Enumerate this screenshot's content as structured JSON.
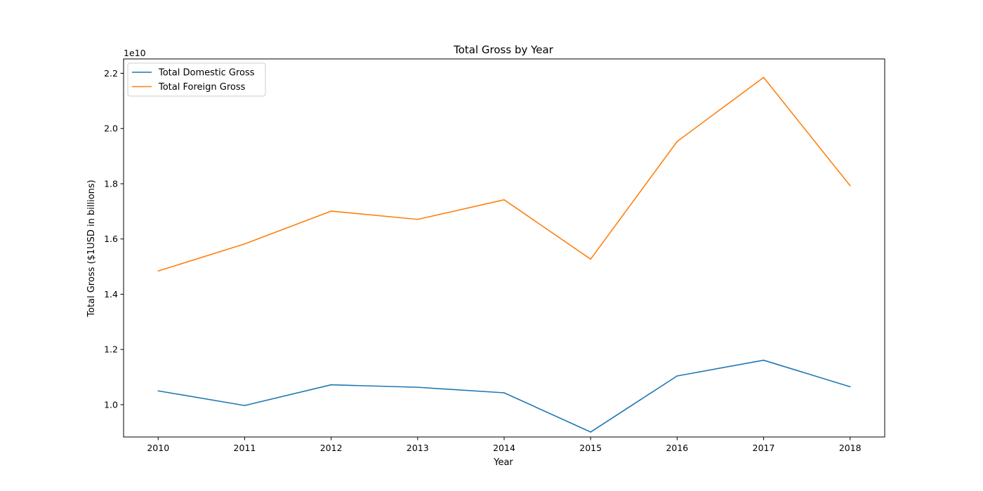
{
  "chart_data": {
    "type": "line",
    "title": "Total Gross by Year",
    "xlabel": "Year",
    "ylabel": "Total Gross ($1USD in billions)",
    "y_offset_label": "1e10",
    "x": [
      2010,
      2011,
      2012,
      2013,
      2014,
      2015,
      2016,
      2017,
      2018
    ],
    "x_tick_labels": [
      "2010",
      "2011",
      "2012",
      "2013",
      "2014",
      "2015",
      "2016",
      "2017",
      "2018"
    ],
    "y_tick_values": [
      1.0,
      1.2,
      1.4,
      1.6,
      1.8,
      2.0,
      2.2
    ],
    "y_tick_labels": [
      "1.0",
      "1.2",
      "1.4",
      "1.6",
      "1.8",
      "2.0",
      "2.2"
    ],
    "xlim": [
      2009.6,
      2018.4
    ],
    "ylim": [
      0.883,
      2.252
    ],
    "grid": false,
    "legend_position": "upper-left",
    "series": [
      {
        "name": "Total Domestic Gross",
        "color": "#1f77b4",
        "values": [
          1.05,
          0.997,
          1.072,
          1.063,
          1.043,
          0.901,
          1.104,
          1.161,
          1.065
        ]
      },
      {
        "name": "Total Foreign Gross",
        "color": "#ff7f0e",
        "values": [
          1.484,
          1.582,
          1.701,
          1.671,
          1.742,
          1.527,
          1.953,
          2.185,
          1.793
        ]
      }
    ]
  }
}
